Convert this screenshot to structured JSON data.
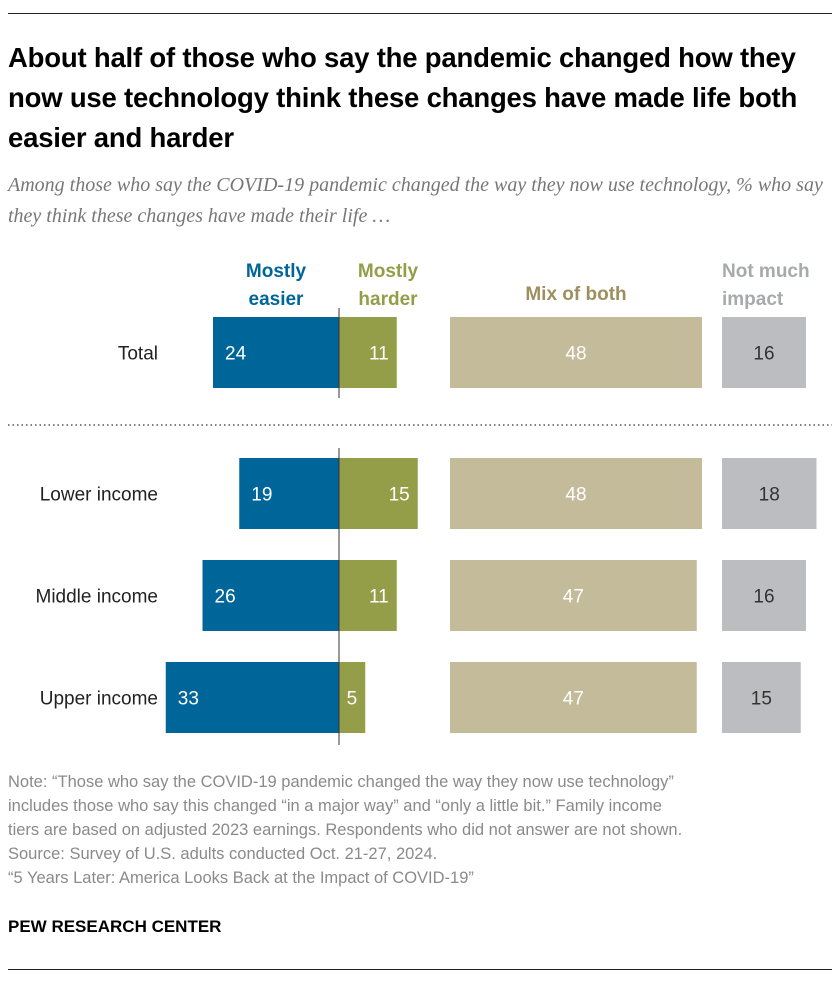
{
  "title": "About half of those who say the pandemic changed how they now use technology think these changes have made life both easier and harder",
  "subtitle": "Among those who say the COVID-19 pandemic changed the way they now use technology, % who say they think these changes have made their life …",
  "chart_data": {
    "type": "bar",
    "orientation": "horizontal",
    "layout": "diverging-plus-separate-columns",
    "categories": [
      "Total",
      "Lower income",
      "Middle income",
      "Upper income"
    ],
    "series": [
      {
        "name": "Mostly easier",
        "name_lines": [
          "Mostly",
          "easier"
        ],
        "color": "#006699",
        "values": [
          24,
          19,
          26,
          33
        ],
        "label_color": "#ffffff"
      },
      {
        "name": "Mostly harder",
        "name_lines": [
          "Mostly",
          "harder"
        ],
        "color": "#949E48",
        "values": [
          11,
          15,
          11,
          5
        ],
        "label_color": "#ffffff"
      },
      {
        "name": "Mix of both",
        "name_lines": [
          "Mix of both"
        ],
        "color": "#C4BB9A",
        "header_color": "#9E8F5E",
        "values": [
          48,
          48,
          47,
          47
        ],
        "label_color": "#ffffff"
      },
      {
        "name": "Not much impact",
        "name_lines": [
          "Not much",
          "impact"
        ],
        "color": "#BCBDC0",
        "header_color": "#A7A9AC",
        "values": [
          16,
          18,
          16,
          15
        ],
        "label_color": "#333333"
      }
    ],
    "separator_after": "Total"
  },
  "note": [
    "Note: “Those who say the COVID-19 pandemic changed the way they now use technology”",
    "includes those who say this changed “in a major way” and “only a little bit.” Family income",
    "tiers are based on adjusted 2023 earnings. Respondents who did not answer are not shown.",
    "Source: Survey of U.S. adults conducted Oct. 21-27, 2024.",
    "“5 Years Later: America Looks Back at the Impact of COVID-19”"
  ],
  "brand": "PEW RESEARCH CENTER"
}
